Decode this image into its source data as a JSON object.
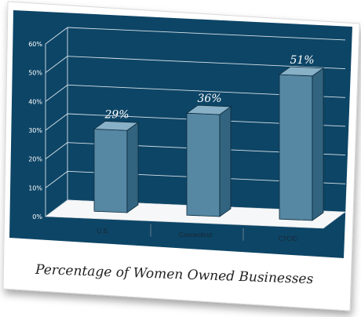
{
  "chart_data": {
    "type": "bar",
    "categories": [
      "U.S.",
      "Connecticut",
      "CTCIC"
    ],
    "values": [
      29,
      36,
      51
    ],
    "value_labels": [
      "29%",
      "36%",
      "51%"
    ],
    "ylim": [
      0,
      60
    ],
    "yticks": [
      0,
      10,
      20,
      30,
      40,
      50,
      60
    ],
    "ytick_labels": [
      "0%",
      "10%",
      "20%",
      "30%",
      "40%",
      "50%",
      "60%"
    ],
    "title": "",
    "xlabel": "",
    "ylabel": "",
    "grid": true,
    "style": "3d"
  },
  "caption": "Percentage of Women Owned Businesses",
  "colors": {
    "panel": "#0d4566",
    "bar_front": "#5687a3",
    "bar_side": "#33647f",
    "bar_top": "#88b0c6",
    "floor": "#f6f7f8",
    "photo_frame": "#ffffff"
  }
}
